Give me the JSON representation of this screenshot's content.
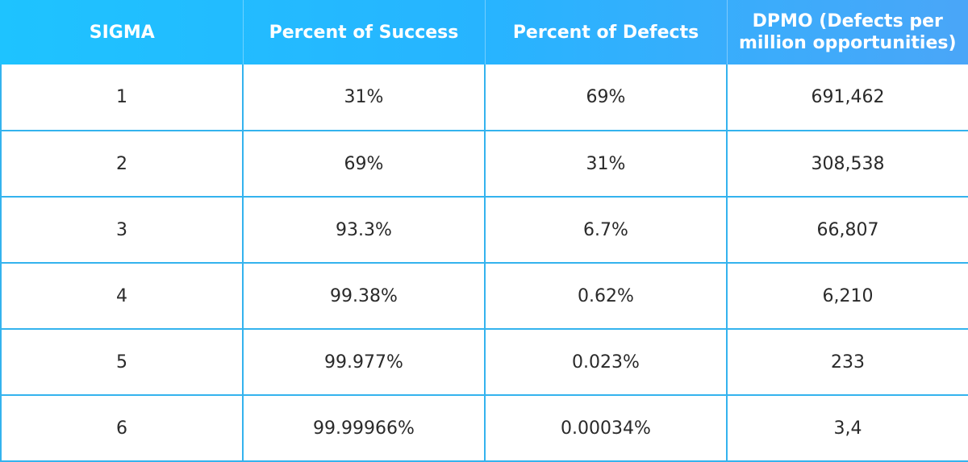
{
  "table": {
    "headers": [
      "SIGMA",
      "Percent of Success",
      "Percent of Defects",
      "DPMO (Defects per million opportunities)"
    ],
    "rows": [
      [
        "1",
        "31%",
        "69%",
        "691,462"
      ],
      [
        "2",
        "69%",
        "31%",
        "308,538"
      ],
      [
        "3",
        "93.3%",
        "6.7%",
        "66,807"
      ],
      [
        "4",
        "99.38%",
        "0.62%",
        "6,210"
      ],
      [
        "5",
        "99.977%",
        "0.023%",
        "233"
      ],
      [
        "6",
        "99.99966%",
        "0.00034%",
        "3,4"
      ]
    ]
  },
  "colors": {
    "header_start": "#1ec3ff",
    "header_end": "#4aa6f8",
    "border": "#34b3ee",
    "header_text": "#ffffff",
    "body_text": "#2a2a2a"
  }
}
